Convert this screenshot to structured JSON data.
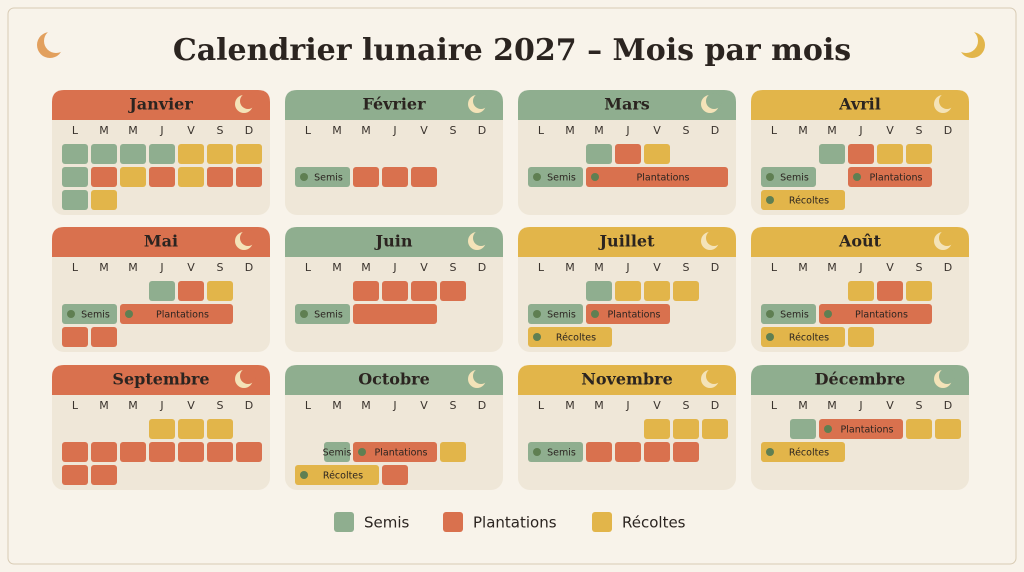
{
  "title": "Calendrier lunaire 2027 – Mois par mois",
  "weekdays": [
    "L",
    "M",
    "M",
    "J",
    "V",
    "S",
    "D"
  ],
  "legend": [
    {
      "label": "Semis",
      "color": "#8fae8f"
    },
    {
      "label": "Plantations",
      "color": "#d9714e"
    },
    {
      "label": "Récoltes",
      "color": "#e2b54a"
    }
  ],
  "months": [
    {
      "name": "Janvier",
      "color": "#d9714e",
      "rows": [
        [
          0,
          0,
          0,
          0,
          2,
          2,
          2
        ],
        [
          0,
          1,
          2,
          1,
          2,
          1,
          1
        ],
        [
          0,
          2
        ]
      ]
    },
    {
      "name": "Février",
      "color": "#8fae8f",
      "rows": [
        [],
        [
          {
            "type": 0,
            "label": "Semis",
            "span": 2
          },
          1,
          1,
          1
        ]
      ]
    },
    {
      "name": "Mars",
      "color": "#8fae8f",
      "rows": [
        [
          null,
          null,
          0,
          1,
          2
        ],
        [
          {
            "type": 0,
            "label": "Semis",
            "span": 2
          },
          {
            "type": 1,
            "label": "Plantations",
            "span": 5
          }
        ]
      ]
    },
    {
      "name": "Avril",
      "color": "#e2b54a",
      "rows": [
        [
          null,
          null,
          0,
          1,
          2,
          2
        ],
        [
          {
            "type": 0,
            "label": "Semis",
            "span": 2
          },
          null,
          {
            "type": 1,
            "label": "Plantations",
            "span": 3
          }
        ],
        [
          {
            "type": 2,
            "label": "Récoltes",
            "span": 3
          }
        ]
      ]
    },
    {
      "name": "Mai",
      "color": "#d9714e",
      "rows": [
        [
          null,
          null,
          null,
          0,
          1,
          2
        ],
        [
          {
            "type": 0,
            "label": "Semis",
            "span": 2
          },
          {
            "type": 1,
            "label": "Plantations",
            "span": 4
          }
        ],
        [
          1,
          1
        ]
      ]
    },
    {
      "name": "Juin",
      "color": "#8fae8f",
      "rows": [
        [
          null,
          null,
          1,
          1,
          1,
          1
        ],
        [
          {
            "type": 0,
            "label": "Semis",
            "span": 2
          },
          {
            "type": 1,
            "span": 3
          }
        ]
      ]
    },
    {
      "name": "Juillet",
      "color": "#e2b54a",
      "rows": [
        [
          null,
          null,
          0,
          2,
          2,
          2
        ],
        [
          {
            "type": 0,
            "label": "Semis",
            "span": 2
          },
          {
            "type": 1,
            "label": "Plantations",
            "span": 3
          }
        ],
        [
          {
            "type": 2,
            "label": "Récoltes",
            "span": 3
          }
        ]
      ]
    },
    {
      "name": "Août",
      "color": "#e2b54a",
      "rows": [
        [
          null,
          null,
          null,
          2,
          1,
          2
        ],
        [
          {
            "type": 0,
            "label": "Semis",
            "span": 2
          },
          {
            "type": 1,
            "label": "Plantations",
            "span": 4
          }
        ],
        [
          {
            "type": 2,
            "label": "Récoltes",
            "span": 3
          },
          2
        ]
      ]
    },
    {
      "name": "Septembre",
      "color": "#d9714e",
      "rows": [
        [
          null,
          null,
          null,
          2,
          2,
          2
        ],
        [
          1,
          1,
          1,
          1,
          1,
          1,
          1
        ],
        [
          1,
          1
        ]
      ]
    },
    {
      "name": "Octobre",
      "color": "#8fae8f",
      "rows": [
        [],
        [
          null,
          {
            "type": 0,
            "label": "Semis",
            "span": 1
          },
          {
            "type": 1,
            "label": "Plantations",
            "span": 3
          },
          2
        ],
        [
          {
            "type": 2,
            "label": "Récoltes",
            "span": 3
          },
          1
        ]
      ]
    },
    {
      "name": "Novembre",
      "color": "#e2b54a",
      "rows": [
        [
          null,
          null,
          null,
          null,
          2,
          2,
          2
        ],
        [
          {
            "type": 0,
            "label": "Semis",
            "span": 2
          },
          1,
          1,
          1,
          1
        ]
      ]
    },
    {
      "name": "Décembre",
      "color": "#8fae8f",
      "rows": [
        [
          null,
          0,
          {
            "type": 1,
            "label": "Plantations",
            "span": 3
          },
          2,
          2
        ],
        [
          {
            "type": 2,
            "label": "Récoltes",
            "span": 3
          }
        ]
      ]
    }
  ]
}
